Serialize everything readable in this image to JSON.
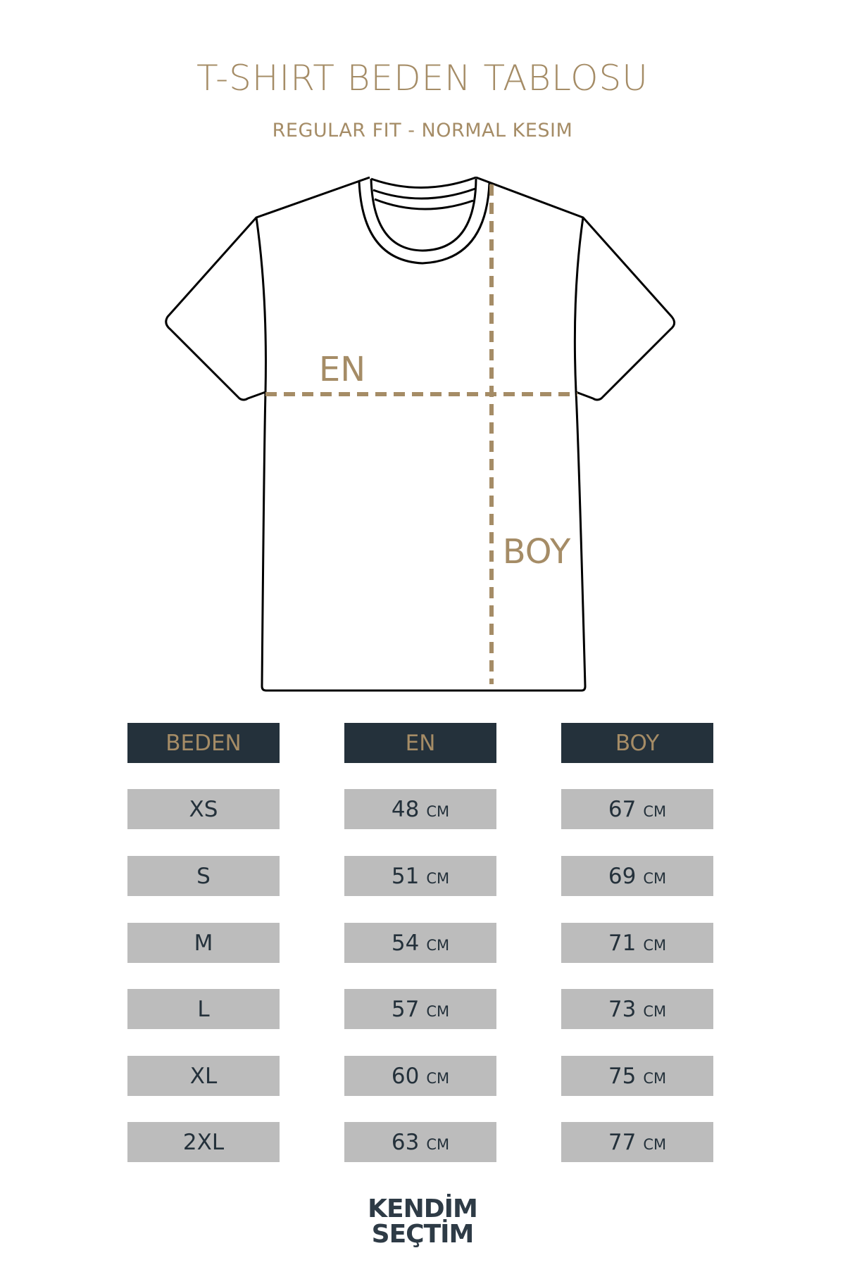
{
  "title": "T-SHIRT BEDEN TABLOSU",
  "subtitle": "REGULAR FIT - NORMAL KESIM",
  "diagram": {
    "en_label": "EN",
    "boy_label": "BOY"
  },
  "colors": {
    "accent": "#a58c66",
    "header_bg": "#24313b",
    "cell_bg": "#bcbcbc",
    "text_dark": "#24313b"
  },
  "table": {
    "headers": [
      "BEDEN",
      "EN",
      "BOY"
    ],
    "unit": "CM",
    "rows": [
      {
        "size": "XS",
        "en": "48",
        "boy": "67"
      },
      {
        "size": "S",
        "en": "51",
        "boy": "69"
      },
      {
        "size": "M",
        "en": "54",
        "boy": "71"
      },
      {
        "size": "L",
        "en": "57",
        "boy": "73"
      },
      {
        "size": "XL",
        "en": "60",
        "boy": "75"
      },
      {
        "size": "2XL",
        "en": "63",
        "boy": "77"
      }
    ]
  },
  "logo": {
    "line1": "KENDİM",
    "line2": "SEÇTİM"
  }
}
